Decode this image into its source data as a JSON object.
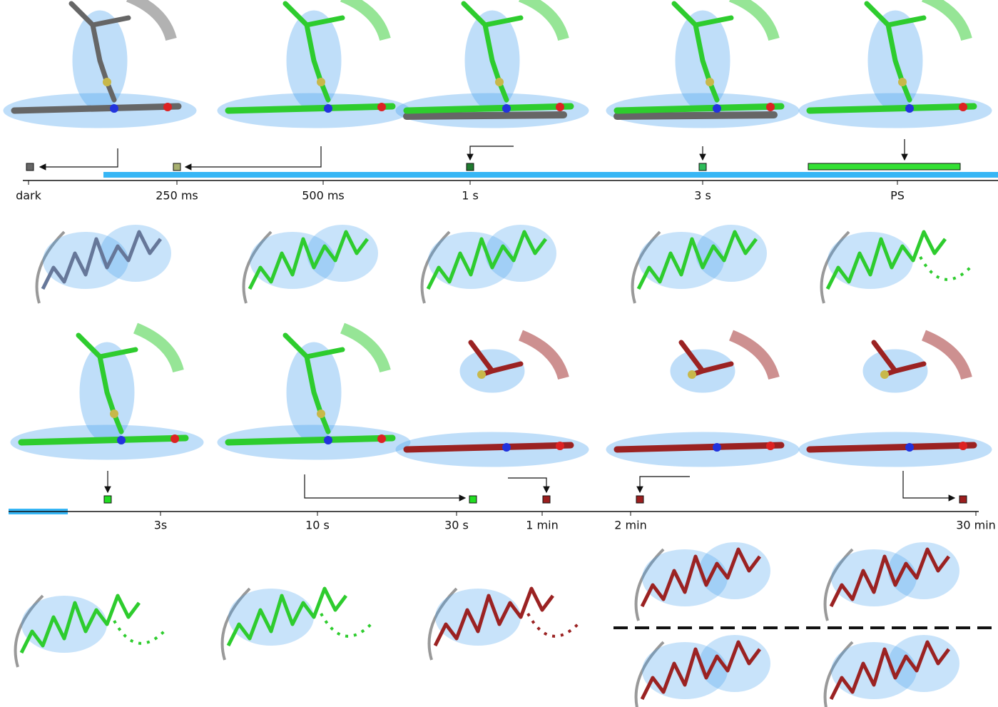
{
  "timelines": [
    {
      "labels": [
        "dark",
        "250 ms",
        "500 ms",
        "1 s",
        "3 s",
        "PS"
      ]
    },
    {
      "labels": [
        "3s",
        "10 s",
        "30 s",
        "1 min",
        "2 min",
        "30 min"
      ]
    }
  ]
}
